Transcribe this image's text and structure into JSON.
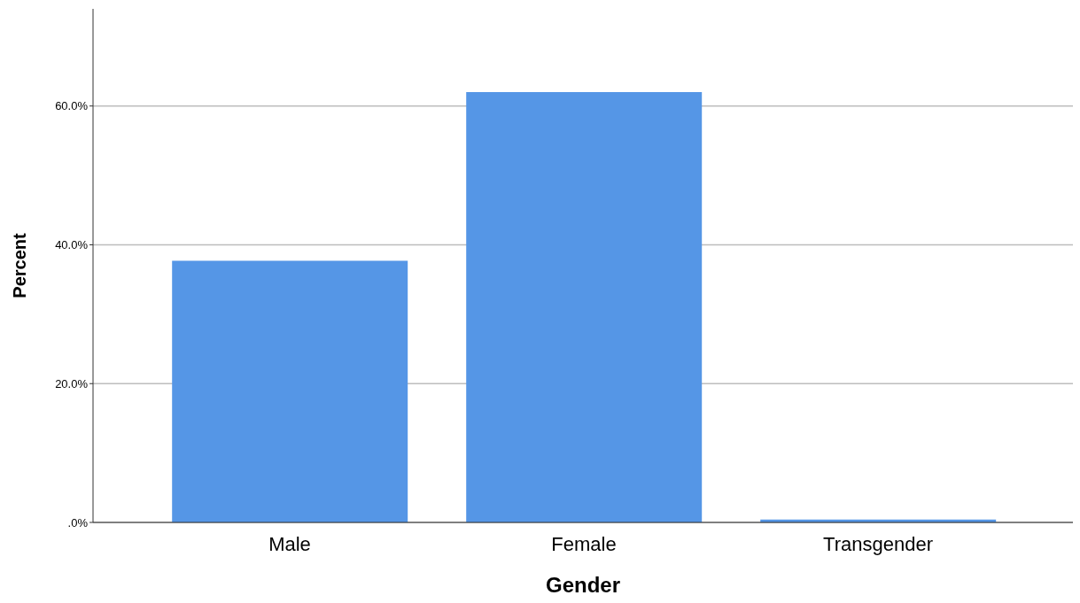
{
  "chart_data": {
    "type": "bar",
    "xlabel": "Gender",
    "ylabel": "Percent",
    "categories": [
      "Male",
      "Female",
      "Transgender"
    ],
    "values": [
      37.7,
      62.0,
      0.4
    ],
    "color": "#5596e6",
    "ylim": [
      0,
      74
    ],
    "yticks": [
      {
        "value": 0,
        "label": ".0%"
      },
      {
        "value": 20,
        "label": "20.0%"
      },
      {
        "value": 40,
        "label": "40.0%"
      },
      {
        "value": 60,
        "label": "60.0%"
      }
    ],
    "grid": "y",
    "legend": false
  }
}
